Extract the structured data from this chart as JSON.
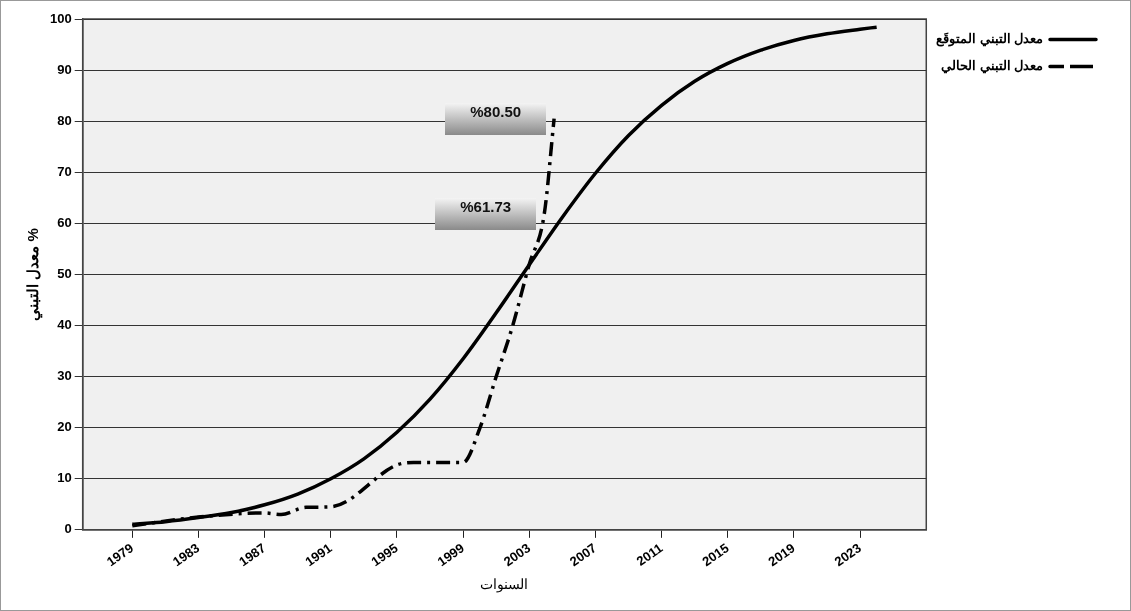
{
  "chart_data": {
    "type": "line",
    "xlabel": "السنوات",
    "ylabel": "معدل التبني %",
    "xlim": [
      1976,
      2027
    ],
    "xticks": [
      1979,
      1983,
      1987,
      1991,
      1995,
      1999,
      2003,
      2007,
      2011,
      2015,
      2019,
      2023
    ],
    "ylim": [
      0,
      100
    ],
    "yticks": [
      0,
      10,
      20,
      30,
      40,
      50,
      60,
      70,
      80,
      90,
      100
    ],
    "grid": "y",
    "legend": "top right",
    "marker": "none",
    "series": [
      {
        "name": "معدل التبني المتوقَع",
        "color": "#000000",
        "line_style": "solid",
        "x": [
          1979,
          1981,
          1983,
          1985,
          1987,
          1989,
          1991,
          1993,
          1995,
          1997,
          1999,
          2001,
          2003,
          2005,
          2007,
          2009,
          2011,
          2013,
          2015,
          2017,
          2019,
          2021,
          2023,
          2024
        ],
        "values": [
          1.1,
          1.6,
          2.4,
          3.4,
          4.9,
          7.0,
          10.0,
          13.9,
          19.1,
          25.6,
          33.5,
          42.5,
          51.9,
          61.2,
          69.8,
          77.2,
          83.1,
          87.8,
          91.3,
          93.9,
          95.8,
          97.1,
          98.0,
          98.4
        ]
      },
      {
        "name": "معدل التبني الحالي",
        "color": "#000000",
        "line_style": "dashed",
        "x": [
          1979,
          1983,
          1987,
          1988,
          1989.5,
          1991,
          1995,
          1996,
          1999,
          2000,
          2001,
          2002,
          2003,
          2003.9,
          2004.5
        ],
        "values": [
          0.8,
          2.5,
          3.3,
          3.0,
          4.4,
          4.5,
          12.7,
          13.2,
          13.2,
          19.8,
          30,
          40,
          52,
          61.73,
          80.5
        ]
      }
    ],
    "annotations": [
      {
        "text": "%80.50",
        "x": 2004.5,
        "y": 80.5
      },
      {
        "text": "%61.73",
        "x": 2003.9,
        "y": 61.73
      }
    ]
  }
}
